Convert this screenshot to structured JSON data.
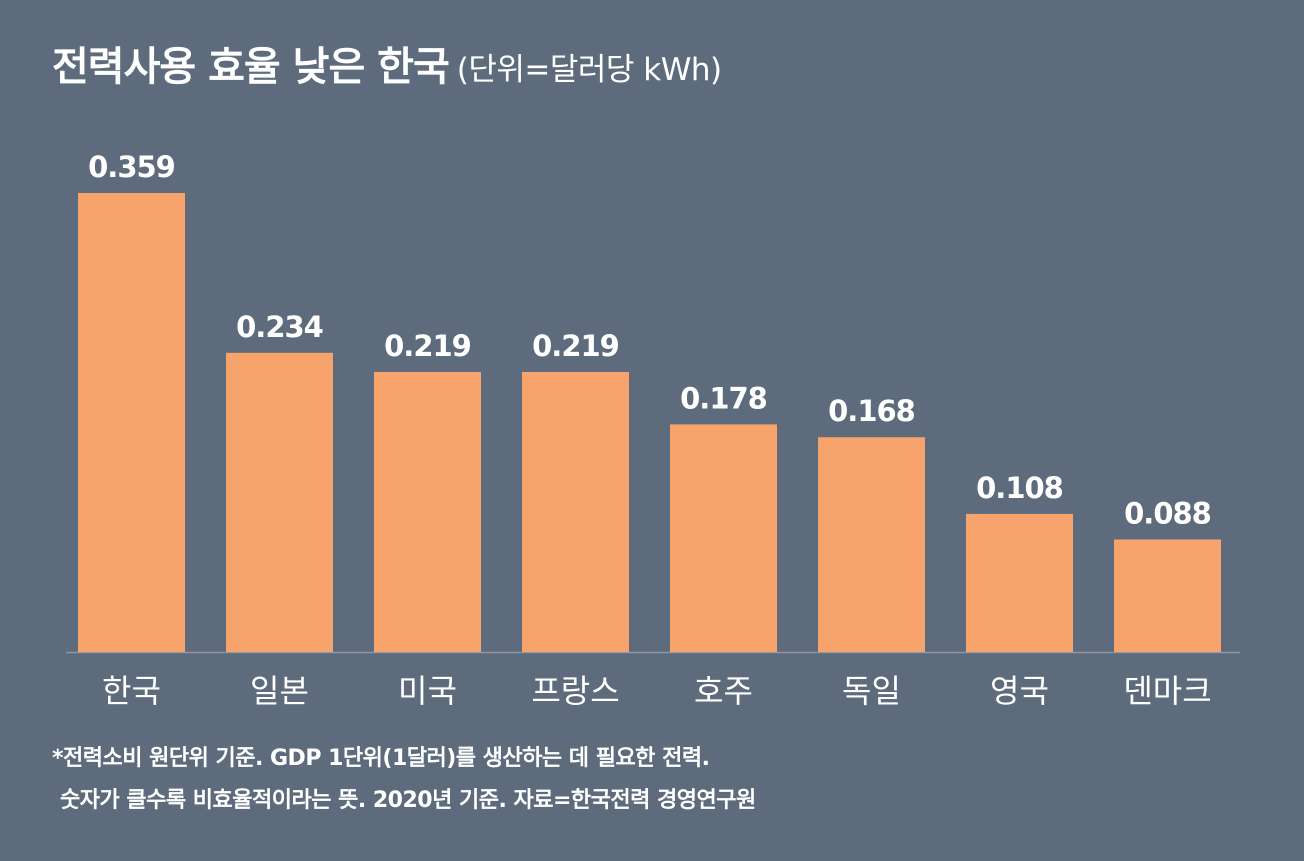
{
  "header": {
    "title": "전력사용 효율 낮은 한국",
    "unit": "(단위=달러당 kWh)"
  },
  "chart_data": {
    "type": "bar",
    "title": "전력사용 효율 낮은 한국",
    "unit_label": "(단위=달러당 kWh)",
    "categories": [
      "한국",
      "일본",
      "미국",
      "프랑스",
      "호주",
      "독일",
      "영국",
      "덴마크"
    ],
    "values": [
      0.359,
      0.234,
      0.219,
      0.219,
      0.178,
      0.168,
      0.108,
      0.088
    ],
    "value_labels": [
      "0.359",
      "0.234",
      "0.219",
      "0.219",
      "0.178",
      "0.168",
      "0.108",
      "0.088"
    ],
    "xlabel": "",
    "ylabel": "",
    "ylim": [
      0,
      0.359
    ],
    "grid": false,
    "legend": "none"
  },
  "colors": {
    "background": "#5d6b7c",
    "bar": "#f6a46b",
    "text": "#ffffff",
    "baseline": "#8f99a6"
  },
  "footnote": {
    "line1": "*전력소비 원단위 기준. GDP 1단위(1달러)를 생산하는 데 필요한 전력.",
    "line2": "숫자가 클수록 비효율적이라는 뜻. 2020년 기준. 자료=한국전력 경영연구원"
  }
}
